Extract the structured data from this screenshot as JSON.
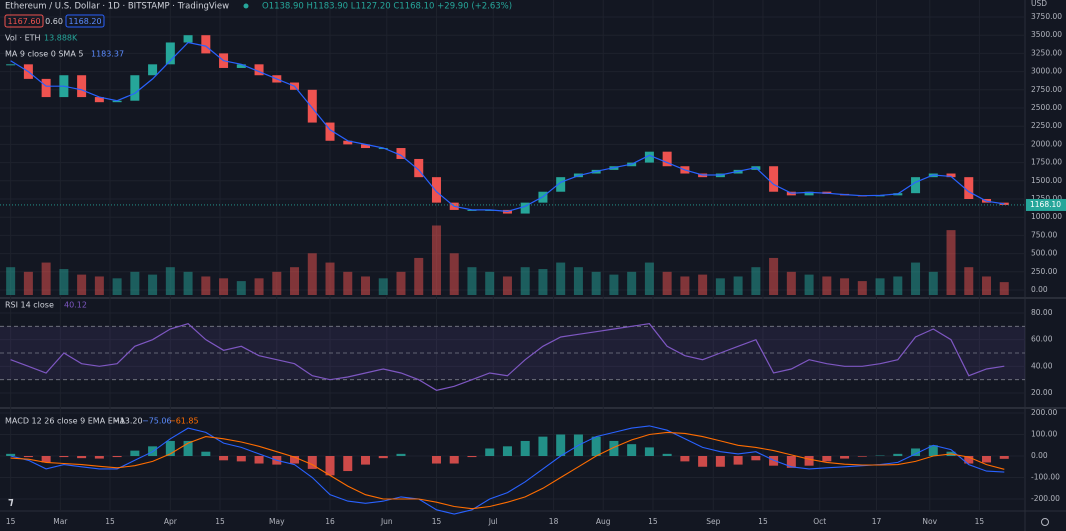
{
  "header": {
    "title": "Ethereum / U.S. Dollar · 1D · BITSTAMP · TradingView",
    "ohlc": "O1138.90 H1183.90 L1127.20 C1168.10 +29.90 (+2.63%)",
    "bid": "1167.60",
    "spread": "0.60",
    "ask": "1168.20",
    "volume_legend": "Vol · ETH",
    "volume_value": "13.888K",
    "ma_legend": "MA 9 close 0 SMA 5",
    "ma_value": "1183.37",
    "rsi_legend": "RSI 14 close",
    "rsi_value": "40.12",
    "macd_legend": "MACD 12 26 close 9 EMA EMA",
    "macd_hist": "−13.20",
    "macd_value": "−75.06",
    "macd_signal": "−61.85",
    "currency": "USD"
  },
  "chart_data": [
    {
      "type": "candlestick",
      "x": [
        0,
        5,
        10,
        15,
        20,
        25,
        30,
        35,
        40,
        45,
        50,
        55,
        60,
        65,
        70,
        75,
        80,
        85,
        90,
        95,
        100,
        105,
        110,
        115,
        120,
        125,
        130,
        135,
        140,
        145,
        150,
        155,
        160,
        165,
        170,
        175,
        180,
        185,
        190,
        195,
        200,
        205,
        210,
        215,
        220,
        225,
        230,
        235,
        240,
        245,
        250,
        255,
        260,
        265,
        270,
        275,
        280
      ],
      "close": [
        3100,
        2900,
        2650,
        2950,
        2650,
        2580,
        2600,
        2950,
        3100,
        3400,
        3500,
        3250,
        3050,
        3100,
        2950,
        2850,
        2750,
        2300,
        2050,
        2000,
        1950,
        1950,
        1800,
        1550,
        1200,
        1100,
        1100,
        1100,
        1050,
        1200,
        1350,
        1550,
        1600,
        1650,
        1700,
        1750,
        1900,
        1700,
        1600,
        1550,
        1600,
        1650,
        1700,
        1350,
        1300,
        1350,
        1320,
        1300,
        1290,
        1300,
        1330,
        1550,
        1600,
        1550,
        1250,
        1200,
        1168.1
      ],
      "ma": [
        3150,
        3000,
        2800,
        2800,
        2750,
        2650,
        2600,
        2700,
        2900,
        3150,
        3400,
        3350,
        3150,
        3100,
        3000,
        2900,
        2800,
        2500,
        2200,
        2050,
        2000,
        1950,
        1850,
        1650,
        1350,
        1150,
        1100,
        1100,
        1080,
        1150,
        1280,
        1480,
        1570,
        1630,
        1680,
        1730,
        1850,
        1750,
        1650,
        1580,
        1580,
        1630,
        1680,
        1450,
        1330,
        1340,
        1330,
        1310,
        1295,
        1300,
        1320,
        1480,
        1580,
        1560,
        1350,
        1220,
        1183.37
      ],
      "volume": [
        30,
        25,
        35,
        28,
        22,
        20,
        18,
        25,
        22,
        30,
        25,
        20,
        18,
        15,
        18,
        25,
        30,
        45,
        35,
        25,
        20,
        18,
        25,
        40,
        75,
        45,
        30,
        25,
        20,
        30,
        28,
        35,
        30,
        25,
        22,
        25,
        35,
        25,
        20,
        22,
        18,
        20,
        30,
        40,
        25,
        22,
        20,
        18,
        15,
        18,
        20,
        35,
        25,
        70,
        30,
        20,
        13.888
      ],
      "volume_lim": [
        0,
        300
      ],
      "up_color": "#26a69a",
      "down_color": "#ef5350",
      "ma_color": "#2962ff",
      "last_price_label": "1168.10",
      "xlim": [
        -3,
        285
      ],
      "xticks": [
        {
          "value": 0,
          "label": "15"
        },
        {
          "value": 14,
          "label": "Mar"
        },
        {
          "value": 28,
          "label": "15"
        },
        {
          "value": 45,
          "label": "Apr"
        },
        {
          "value": 59,
          "label": "15"
        },
        {
          "value": 75,
          "label": "May"
        },
        {
          "value": 90,
          "label": "16"
        },
        {
          "value": 106,
          "label": "Jun"
        },
        {
          "value": 120,
          "label": "15"
        },
        {
          "value": 136,
          "label": "Jul"
        },
        {
          "value": 153,
          "label": "18"
        },
        {
          "value": 167,
          "label": "Aug"
        },
        {
          "value": 181,
          "label": "15"
        },
        {
          "value": 198,
          "label": "Sep"
        },
        {
          "value": 212,
          "label": "15"
        },
        {
          "value": 228,
          "label": "Oct"
        },
        {
          "value": 244,
          "label": "17"
        },
        {
          "value": 259,
          "label": "Nov"
        },
        {
          "value": 273,
          "label": "15"
        }
      ],
      "ylim": [
        0,
        3750
      ],
      "yticks": [
        {
          "value": 0,
          "label": "0.00"
        },
        {
          "value": 250,
          "label": "250.00"
        },
        {
          "value": 500,
          "label": "500.00"
        },
        {
          "value": 750,
          "label": "750.00"
        },
        {
          "value": 1000,
          "label": "1000.00"
        },
        {
          "value": 1250,
          "label": "1250.00"
        },
        {
          "value": 1500,
          "label": "1500.00"
        },
        {
          "value": 1750,
          "label": "1750.00"
        },
        {
          "value": 2000,
          "label": "2000.00"
        },
        {
          "value": 2250,
          "label": "2250.00"
        },
        {
          "value": 2500,
          "label": "2500.00"
        },
        {
          "value": 2750,
          "label": "2750.00"
        },
        {
          "value": 3000,
          "label": "3000.00"
        },
        {
          "value": 3250,
          "label": "3250.00"
        },
        {
          "value": 3500,
          "label": "3500.00"
        },
        {
          "value": 3750,
          "label": "3750.00"
        }
      ]
    },
    {
      "type": "line",
      "values": [
        45,
        40,
        35,
        50,
        42,
        40,
        42,
        55,
        60,
        68,
        72,
        60,
        52,
        55,
        48,
        45,
        42,
        33,
        30,
        32,
        35,
        38,
        35,
        30,
        22,
        25,
        30,
        35,
        33,
        45,
        55,
        62,
        64,
        66,
        68,
        70,
        72,
        55,
        48,
        45,
        50,
        55,
        60,
        35,
        38,
        45,
        42,
        40,
        40,
        42,
        45,
        62,
        68,
        60,
        33,
        38,
        40.12
      ],
      "color": "#7e57c2",
      "levels": [
        30,
        50,
        70
      ],
      "ylim": [
        20,
        80
      ],
      "yticks": [
        {
          "value": 20,
          "label": "20.00"
        },
        {
          "value": 40,
          "label": "40.00"
        },
        {
          "value": 60,
          "label": "60.00"
        },
        {
          "value": 80,
          "label": "80.00"
        }
      ]
    },
    {
      "type": "macd",
      "series": [
        {
          "color": "#2962ff",
          "values": [
            0,
            -20,
            -60,
            -40,
            -50,
            -60,
            -60,
            -20,
            20,
            80,
            130,
            110,
            60,
            40,
            10,
            -20,
            -40,
            -100,
            -180,
            -210,
            -220,
            -210,
            -190,
            -200,
            -250,
            -270,
            -250,
            -200,
            -170,
            -120,
            -60,
            0,
            50,
            90,
            110,
            130,
            140,
            120,
            80,
            40,
            20,
            10,
            20,
            -20,
            -50,
            -60,
            -55,
            -50,
            -45,
            -40,
            -30,
            10,
            50,
            30,
            -40,
            -70,
            -75.06
          ]
        },
        {
          "color": "#ff6d00",
          "values": [
            -10,
            -15,
            -30,
            -35,
            -40,
            -48,
            -55,
            -45,
            -25,
            10,
            60,
            90,
            80,
            65,
            45,
            20,
            -5,
            -40,
            -90,
            -140,
            -180,
            -200,
            -200,
            -200,
            -215,
            -235,
            -245,
            -235,
            -215,
            -190,
            -150,
            -100,
            -50,
            0,
            40,
            75,
            100,
            110,
            105,
            90,
            70,
            50,
            40,
            25,
            5,
            -15,
            -30,
            -38,
            -42,
            -42,
            -40,
            -25,
            0,
            10,
            -5,
            -40,
            -61.85
          ]
        }
      ],
      "histogram": [
        10,
        -5,
        -30,
        -5,
        -10,
        -12,
        -5,
        25,
        45,
        70,
        70,
        20,
        -20,
        -25,
        -35,
        -40,
        -35,
        -60,
        -90,
        -70,
        -40,
        -10,
        10,
        0,
        -35,
        -35,
        -5,
        35,
        45,
        70,
        90,
        100,
        100,
        90,
        70,
        55,
        40,
        10,
        -25,
        -50,
        -50,
        -40,
        -20,
        -45,
        -55,
        -45,
        -25,
        -12,
        -3,
        2,
        10,
        35,
        50,
        20,
        -35,
        -30,
        -13.2
      ],
      "up_color": "#26a69a",
      "down_color": "#ef5350",
      "ylim": [
        -200,
        200
      ],
      "yticks": [
        {
          "value": -200,
          "label": "-200.00"
        },
        {
          "value": -100,
          "label": "-100.00"
        },
        {
          "value": 0,
          "label": "0.00"
        },
        {
          "value": 100,
          "label": "100.00"
        },
        {
          "value": 200,
          "label": "200.00"
        }
      ]
    }
  ]
}
